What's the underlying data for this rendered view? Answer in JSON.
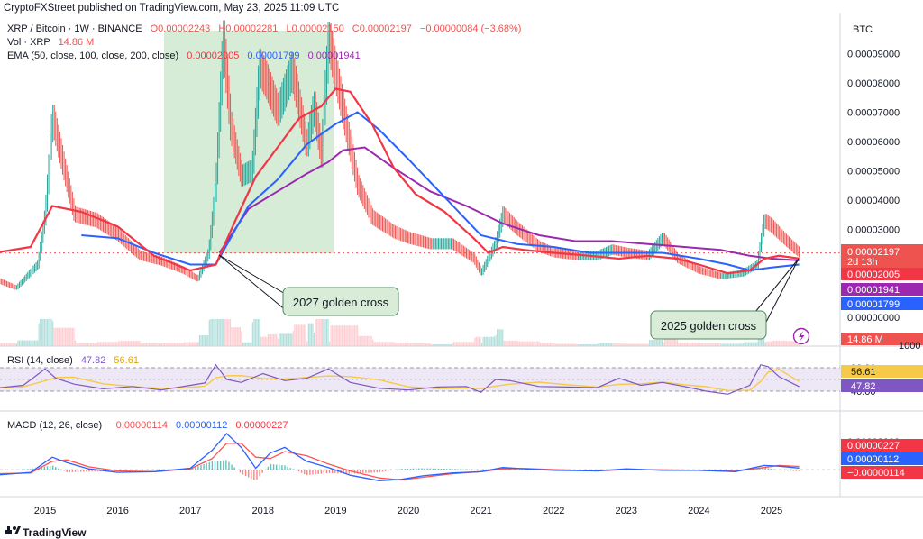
{
  "header": {
    "publish_line": "CryptoFXStreet published on TradingView.com, May 23, 2025 11:09 UTC",
    "footer_brand": "TradingView"
  },
  "legend": {
    "symbol": "XRP / Bitcoin · 1W · BINANCE",
    "ohlc_o": "O0.00002243",
    "ohlc_h": "H0.00002281",
    "ohlc_l": "L0.00002150",
    "ohlc_c": "C0.00002197",
    "change": "−0.00000084 (−3.68%)",
    "vol_label": "Vol · XRP",
    "vol_value": "14.86 M",
    "ema_label": "EMA (50, close, 100, close, 200, close)",
    "ema50": "0.00002005",
    "ema100": "0.00001799",
    "ema200": "0.00001941",
    "rsi_label": "RSI (14, close)",
    "rsi_value": "47.82",
    "rsi_ma": "56.61",
    "macd_label": "MACD (12, 26, close)",
    "macd_hist": "−0.00000114",
    "macd_line": "0.00000112",
    "macd_signal": "0.00000227"
  },
  "annotations": {
    "cross_2017": "2027 golden cross",
    "cross_2025": "2025 golden cross",
    "countdown": "2d 13h"
  },
  "colors": {
    "up": "#26a69a",
    "down": "#ef5350",
    "ema50": "#f23645",
    "ema100": "#2962ff",
    "ema200": "#9c27b0",
    "rsi": "#7e57c2",
    "rsi_ma": "#f7c948",
    "macd": "#2962ff",
    "signal": "#ff5252",
    "highlight": "#c8e6c9"
  },
  "chart_data": {
    "type": "line",
    "title": "XRP / Bitcoin · 1W · BINANCE",
    "currency": "BTC",
    "x_ticks": [
      "2015",
      "2016",
      "2017",
      "2018",
      "2019",
      "2020",
      "2021",
      "2022",
      "2023",
      "2024",
      "2025"
    ],
    "price_axis": {
      "ticks": [
        "0.00009000",
        "0.00008000",
        "0.00007000",
        "0.00006000",
        "0.00005000",
        "0.00004000",
        "0.00003000",
        "0.00001000",
        "0.00000000"
      ],
      "ylim": [
        0,
        0.000104
      ],
      "tags": {
        "close": "0.00002197",
        "ema50": "0.00002005",
        "ema200": "0.00001941",
        "ema100": "0.00001799",
        "volume": "14.86 M",
        "volume_tick": "1000"
      }
    },
    "price_series": {
      "x": [
        2014.3,
        2014.6,
        2014.9,
        2015.0,
        2015.1,
        2015.4,
        2015.7,
        2016.0,
        2016.3,
        2016.6,
        2016.9,
        2017.1,
        2017.25,
        2017.35,
        2017.45,
        2017.55,
        2017.7,
        2017.85,
        2017.95,
        2018.05,
        2018.2,
        2018.4,
        2018.6,
        2018.7,
        2018.8,
        2018.9,
        2019.1,
        2019.3,
        2019.5,
        2019.8,
        2020.0,
        2020.3,
        2020.6,
        2020.9,
        2021.0,
        2021.2,
        2021.3,
        2021.5,
        2021.8,
        2022.0,
        2022.3,
        2022.6,
        2022.8,
        2023.0,
        2023.3,
        2023.5,
        2023.7,
        2024.0,
        2024.3,
        2024.6,
        2024.8,
        2024.9,
        2025.0,
        2025.2,
        2025.38
      ],
      "values": [
        1.3e-05,
        1e-05,
        1.8e-05,
        3.5e-05,
        6.8e-05,
        3.5e-05,
        3.3e-05,
        2.8e-05,
        2.1e-05,
        1.9e-05,
        1.6e-05,
        1.3e-05,
        2.2e-05,
        4.5e-05,
        9.5e-05,
        6.5e-05,
        4.8e-05,
        5e-05,
        8.5e-05,
        8e-05,
        7e-05,
        8.4e-05,
        5.8e-05,
        7.2e-05,
        5.5e-05,
        9.5e-05,
        7e-05,
        4.5e-05,
        3.4e-05,
        2.9e-05,
        2.7e-05,
        2.5e-05,
        2.5e-05,
        2e-05,
        1.5e-05,
        2.5e-05,
        3.5e-05,
        3e-05,
        2.4e-05,
        2.2e-05,
        2.1e-05,
        2.1e-05,
        2.3e-05,
        2.2e-05,
        2.1e-05,
        2.7e-05,
        2e-05,
        1.6e-05,
        1.4e-05,
        1.5e-05,
        1.8e-05,
        3.3e-05,
        3.1e-05,
        2.6e-05,
        2.197e-05
      ]
    },
    "ema_series": [
      {
        "name": "EMA 50",
        "last": "0.00002005",
        "x": [
          2014.3,
          2014.8,
          2015.1,
          2015.5,
          2016.0,
          2016.5,
          2017.0,
          2017.35,
          2017.6,
          2017.9,
          2018.2,
          2018.5,
          2018.8,
          2019.0,
          2019.2,
          2019.5,
          2019.8,
          2020.1,
          2020.5,
          2020.9,
          2021.1,
          2021.3,
          2021.6,
          2022.0,
          2022.5,
          2022.9,
          2023.3,
          2023.7,
          2024.0,
          2024.4,
          2024.7,
          2024.9,
          2025.1,
          2025.38
        ],
        "values": [
          2.2e-05,
          2.4e-05,
          3.8e-05,
          3.6e-05,
          3.1e-05,
          2.1e-05,
          1.6e-05,
          1.8e-05,
          3.2e-05,
          4.8e-05,
          5.8e-05,
          6.8e-05,
          7.2e-05,
          7.8e-05,
          7.7e-05,
          6.6e-05,
          5.1e-05,
          4.2e-05,
          3.6e-05,
          2.7e-05,
          2.2e-05,
          2.4e-05,
          2.3e-05,
          2.2e-05,
          2.1e-05,
          2e-05,
          2.1e-05,
          2e-05,
          1.8e-05,
          1.5e-05,
          1.6e-05,
          2e-05,
          2.1e-05,
          2.005e-05
        ]
      },
      {
        "name": "EMA 100",
        "last": "0.00001799",
        "x": [
          2015.5,
          2016.0,
          2016.5,
          2017.0,
          2017.35,
          2017.8,
          2018.2,
          2018.6,
          2019.0,
          2019.3,
          2019.6,
          2020.0,
          2020.5,
          2021.0,
          2021.5,
          2022.0,
          2022.5,
          2023.0,
          2023.5,
          2024.0,
          2024.4,
          2024.7,
          2025.0,
          2025.38
        ],
        "values": [
          2.8e-05,
          2.7e-05,
          2.2e-05,
          1.8e-05,
          1.8e-05,
          3.8e-05,
          4.7e-05,
          5.9e-05,
          6.6e-05,
          7e-05,
          6.4e-05,
          5.4e-05,
          4.1e-05,
          2.8e-05,
          2.5e-05,
          2.4e-05,
          2.2e-05,
          2.2e-05,
          2.2e-05,
          2e-05,
          1.8e-05,
          1.6e-05,
          1.7e-05,
          1.799e-05
        ]
      },
      {
        "name": "EMA 200",
        "last": "0.00001941",
        "x": [
          2017.4,
          2017.8,
          2018.2,
          2018.6,
          2018.9,
          2019.1,
          2019.4,
          2019.8,
          2020.3,
          2020.8,
          2021.3,
          2021.8,
          2022.3,
          2022.8,
          2023.3,
          2023.8,
          2024.3,
          2024.7,
          2025.0,
          2025.38
        ],
        "values": [
          2.2e-05,
          3.7e-05,
          4.3e-05,
          4.9e-05,
          5.3e-05,
          5.7e-05,
          5.8e-05,
          5.1e-05,
          4.3e-05,
          3.8e-05,
          3.2e-05,
          2.8e-05,
          2.6e-05,
          2.6e-05,
          2.5e-05,
          2.4e-05,
          2.3e-05,
          2.1e-05,
          2e-05,
          1.941e-05
        ]
      }
    ],
    "rsi": {
      "ticks": [
        "80.00",
        "40.00"
      ],
      "ylim": [
        20,
        90
      ],
      "current": "47.82",
      "ma_current": "56.61",
      "x": [
        2014.3,
        2014.7,
        2015.0,
        2015.15,
        2015.4,
        2015.8,
        2016.2,
        2016.6,
        2017.0,
        2017.2,
        2017.35,
        2017.5,
        2017.7,
        2018.0,
        2018.3,
        2018.6,
        2018.9,
        2019.2,
        2019.6,
        2020.0,
        2020.4,
        2020.8,
        2021.0,
        2021.2,
        2021.4,
        2021.8,
        2022.2,
        2022.6,
        2022.9,
        2023.2,
        2023.5,
        2023.8,
        2024.1,
        2024.4,
        2024.7,
        2024.85,
        2024.95,
        2025.1,
        2025.38
      ],
      "values": [
        45,
        50,
        78,
        62,
        52,
        44,
        48,
        42,
        50,
        54,
        85,
        60,
        55,
        70,
        58,
        62,
        78,
        55,
        45,
        42,
        47,
        48,
        38,
        60,
        58,
        48,
        47,
        46,
        62,
        50,
        55,
        48,
        40,
        35,
        50,
        85,
        82,
        65,
        47.82
      ]
    },
    "macd": {
      "ticks": [
        "0.00002000"
      ],
      "current_hist": "−0.00000114",
      "current_macd": "0.00000112",
      "current_signal": "0.00000227",
      "ylim": [
        -1.2e-05,
        2.7e-05
      ],
      "x": [
        2014.3,
        2014.8,
        2015.1,
        2015.3,
        2015.6,
        2016.0,
        2016.5,
        2017.0,
        2017.3,
        2017.5,
        2017.7,
        2017.9,
        2018.1,
        2018.3,
        2018.6,
        2018.9,
        2019.2,
        2019.6,
        2019.9,
        2020.2,
        2020.6,
        2021.0,
        2021.3,
        2021.6,
        2022.0,
        2022.6,
        2023.0,
        2023.5,
        2024.0,
        2024.5,
        2024.9,
        2025.1,
        2025.38
      ],
      "macd_values": [
        -4e-06,
        -2e-06,
        9e-06,
        5e-06,
        5e-07,
        -2e-06,
        -1.5e-06,
        1e-06,
        1.4e-05,
        2.6e-05,
        1.6e-05,
        1e-06,
        1.2e-05,
        1.6e-05,
        6e-06,
        1.5e-06,
        -4e-06,
        -8e-06,
        -7e-06,
        -4.5e-06,
        -2.5e-06,
        -1.5e-06,
        1.5e-06,
        5e-07,
        -5e-07,
        -1e-06,
        5e-07,
        -5e-07,
        -5e-07,
        -1.5e-06,
        3e-06,
        2.5e-06,
        1.12e-06
      ],
      "signal_values": [
        -3e-06,
        -2.5e-06,
        6e-06,
        7e-06,
        2e-06,
        -1e-06,
        -1.5e-06,
        5e-07,
        8e-06,
        1.9e-05,
        1.9e-05,
        9e-06,
        8e-06,
        1.3e-05,
        1e-05,
        4e-06,
        -1e-06,
        -6e-06,
        -7.5e-06,
        -5.5e-06,
        -3e-06,
        -1.5e-06,
        5e-07,
        8e-07,
        0,
        -1e-06,
        0,
        -2e-07,
        -5e-07,
        -1.2e-06,
        1.5e-06,
        3e-06,
        2.27e-06
      ]
    }
  }
}
